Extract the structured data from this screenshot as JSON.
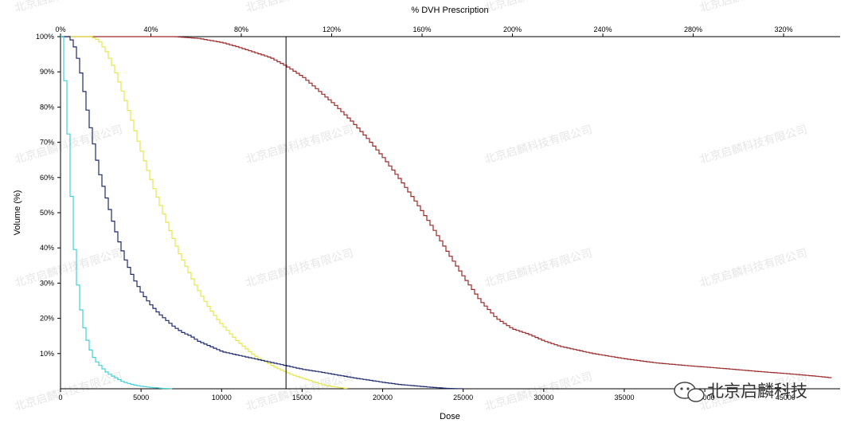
{
  "chart_data": {
    "type": "line",
    "title": "",
    "xlabel": "Dose",
    "ylabel": "Volume (%)",
    "top_axis_label": "% DVH Prescription",
    "xlim": [
      0,
      48400
    ],
    "ylim": [
      0,
      100
    ],
    "top_axis_range": [
      0,
      345
    ],
    "x_ticks": [
      "0",
      "5000",
      "10000",
      "15000",
      "20000",
      "25000",
      "30000",
      "35000",
      "40000",
      "45000"
    ],
    "x_tick_values": [
      0,
      5000,
      10000,
      15000,
      20000,
      25000,
      30000,
      35000,
      40000,
      45000
    ],
    "y_ticks": [
      "10%",
      "20%",
      "30%",
      "40%",
      "50%",
      "60%",
      "70%",
      "80%",
      "90%",
      "100%"
    ],
    "y_tick_values": [
      10,
      20,
      30,
      40,
      50,
      60,
      70,
      80,
      90,
      100
    ],
    "top_ticks": [
      "0%",
      "40%",
      "80%",
      "120%",
      "160%",
      "200%",
      "240%",
      "280%",
      "320%"
    ],
    "top_tick_values": [
      0,
      40,
      80,
      120,
      160,
      200,
      240,
      280,
      320
    ],
    "prescription_line_dose": 14000,
    "grid": false,
    "series": [
      {
        "color": "#9a2a2a",
        "x": [
          0,
          7000,
          8500,
          10000,
          11000,
          12000,
          13000,
          14000,
          15000,
          16000,
          17000,
          18000,
          19000,
          20000,
          21000,
          22000,
          23000,
          24000,
          25000,
          26000,
          27000,
          28000,
          29000,
          30000,
          31000,
          32000,
          33000,
          35000,
          37000,
          39000,
          41000,
          43000,
          45000,
          47000,
          48000
        ],
        "y": [
          100,
          100,
          99.5,
          98.3,
          97,
          95.5,
          94,
          91.5,
          88.5,
          84.5,
          80.5,
          76,
          71,
          65.5,
          59.5,
          53,
          46,
          38.5,
          31.5,
          25,
          20,
          17,
          15.5,
          13.5,
          12,
          11,
          10,
          8.5,
          7.3,
          6.5,
          5.8,
          5,
          4.3,
          3.5,
          3
        ]
      },
      {
        "color": "#e6e64c",
        "x": [
          0,
          1800,
          2300,
          2800,
          3300,
          3800,
          4300,
          4800,
          5300,
          5800,
          6300,
          6800,
          7300,
          7800,
          8300,
          8800,
          9300,
          9800,
          10300,
          10800,
          11300,
          11800,
          12300,
          12800,
          13300,
          13800,
          14300,
          15300,
          16300,
          17300,
          17800
        ],
        "y": [
          100,
          100,
          99,
          95.5,
          90.5,
          84,
          77,
          69.5,
          62.5,
          56,
          50,
          44,
          38.5,
          34,
          29.5,
          25.5,
          22,
          19,
          16.5,
          14,
          12,
          10,
          8.5,
          7.3,
          6,
          5,
          4,
          2.5,
          1,
          0.3,
          0
        ]
      },
      {
        "color": "#1e2a6e",
        "x": [
          0,
          500,
          800,
          1100,
          1400,
          1700,
          2000,
          2300,
          2600,
          2900,
          3200,
          3500,
          4000,
          4500,
          5000,
          5500,
          6000,
          6500,
          7000,
          7500,
          8000,
          8500,
          9000,
          9500,
          10000,
          11000,
          12000,
          13000,
          14000,
          15000,
          16000,
          17000,
          18000,
          19000,
          20000,
          21000,
          22000,
          23000,
          24000,
          25000
        ],
        "y": [
          100,
          100,
          97,
          92,
          84,
          76,
          69,
          62,
          57,
          52,
          47,
          42.5,
          36,
          31,
          27,
          24,
          21.5,
          19.5,
          17.5,
          16,
          15,
          13.5,
          12.5,
          11.5,
          10.5,
          9.5,
          8.5,
          7.5,
          6.5,
          5.5,
          4.8,
          4,
          3.2,
          2.5,
          1.8,
          1.2,
          0.8,
          0.4,
          0.1,
          0
        ]
      },
      {
        "color": "#40d0d8",
        "x": [
          0,
          150,
          300,
          450,
          600,
          750,
          900,
          1100,
          1300,
          1500,
          1700,
          1900,
          2100,
          2400,
          2700,
          3000,
          3400,
          3800,
          4300,
          4800,
          5500,
          6300,
          7000
        ],
        "y": [
          100,
          91,
          80,
          68,
          54,
          42,
          33,
          25,
          19,
          15,
          12,
          9.5,
          8,
          6.5,
          5,
          4,
          3,
          2,
          1.3,
          0.8,
          0.4,
          0.1,
          0
        ]
      }
    ]
  },
  "watermark": {
    "text": "北京启麟科技有限公司",
    "logo_text": "北京启麟科技"
  },
  "colors": {
    "background": "#ffffff",
    "axis": "#000000",
    "prescription_line": "#000000",
    "watermark": "#c8c8c8"
  }
}
